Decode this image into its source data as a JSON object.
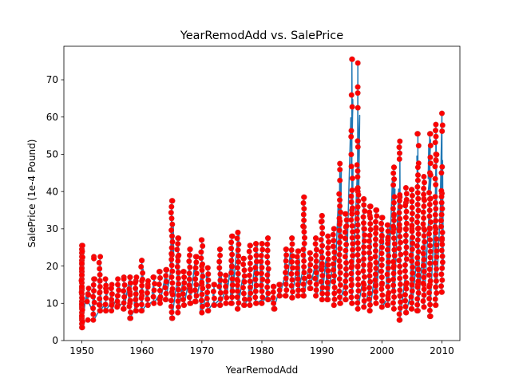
{
  "chart_data": {
    "type": "scatter",
    "title": "YearRemodAdd vs. SalePrice",
    "xlabel": "YearRemodAdd",
    "ylabel": "SalePrice (1e-4 Pound)",
    "xlim": [
      1947,
      2013
    ],
    "ylim": [
      0,
      79
    ],
    "xticks": [
      1950,
      1960,
      1970,
      1980,
      1990,
      2000,
      2010
    ],
    "yticks": [
      0,
      10,
      20,
      30,
      40,
      50,
      60,
      70
    ],
    "grid": false,
    "legend": "none",
    "colors": {
      "line": "#1f77b4",
      "marker": "#ff0000",
      "marker_edge": "#d62728"
    },
    "ranges": [
      [
        1950,
        3.5,
        25.5
      ],
      [
        1951,
        10.5,
        14
      ],
      [
        1952,
        5.5,
        16.5
      ],
      [
        1953,
        8,
        22.5
      ],
      [
        1954,
        8,
        16.5
      ],
      [
        1955,
        8,
        14
      ],
      [
        1956,
        9,
        15
      ],
      [
        1957,
        8.5,
        16.5
      ],
      [
        1958,
        6,
        17
      ],
      [
        1959,
        8,
        17
      ],
      [
        1960,
        8,
        21.5
      ],
      [
        1961,
        9.5,
        16
      ],
      [
        1962,
        10,
        17
      ],
      [
        1963,
        10,
        18.5
      ],
      [
        1964,
        11,
        19
      ],
      [
        1965,
        6,
        37.5
      ],
      [
        1966,
        7.5,
        27.5
      ],
      [
        1967,
        9.5,
        18.5
      ],
      [
        1968,
        10,
        24.5
      ],
      [
        1969,
        10.5,
        22.5
      ],
      [
        1970,
        7.5,
        27
      ],
      [
        1971,
        8,
        19.5
      ],
      [
        1972,
        9.5,
        15
      ],
      [
        1973,
        9.5,
        24.5
      ],
      [
        1974,
        10,
        17.5
      ],
      [
        1975,
        10,
        28
      ],
      [
        1976,
        8.5,
        29
      ],
      [
        1977,
        9.5,
        22
      ],
      [
        1978,
        9.5,
        25.5
      ],
      [
        1979,
        10,
        26
      ],
      [
        1980,
        10,
        26
      ],
      [
        1981,
        11,
        27.5
      ],
      [
        1982,
        8.5,
        14.5
      ],
      [
        1983,
        12,
        15
      ],
      [
        1984,
        12,
        24.5
      ],
      [
        1985,
        11.5,
        27.5
      ],
      [
        1986,
        12,
        24
      ],
      [
        1987,
        12,
        38.5
      ],
      [
        1988,
        14,
        23.5
      ],
      [
        1989,
        12,
        27.5
      ],
      [
        1990,
        11,
        33.5
      ],
      [
        1991,
        11,
        28
      ],
      [
        1992,
        9.5,
        30
      ],
      [
        1993,
        10,
        47.5
      ],
      [
        1994,
        11,
        34
      ],
      [
        1995,
        10,
        75.5
      ],
      [
        1996,
        8.5,
        74.5
      ],
      [
        1997,
        9,
        38
      ],
      [
        1998,
        8,
        36
      ],
      [
        1999,
        10,
        35
      ],
      [
        2000,
        9,
        33
      ],
      [
        2001,
        9.5,
        31
      ],
      [
        2002,
        8.5,
        46.5
      ],
      [
        2003,
        5.5,
        53.5
      ],
      [
        2004,
        7.5,
        41
      ],
      [
        2005,
        8.5,
        40.5
      ],
      [
        2006,
        8,
        55.5
      ],
      [
        2007,
        9,
        44
      ],
      [
        2008,
        6.5,
        55.5
      ],
      [
        2009,
        9.5,
        58
      ],
      [
        2010,
        13,
        61
      ]
    ],
    "x": [
      1950,
      1950,
      1950,
      1950,
      1950,
      1950,
      1950,
      1950,
      1950,
      1950,
      1950,
      1950,
      1950,
      1950,
      1950,
      1950,
      1950,
      1950,
      1950,
      1950,
      1950,
      1950,
      1950,
      1950,
      1950,
      1950,
      1950,
      1951,
      1951,
      1952,
      1952,
      1952,
      1953,
      1953,
      1953,
      1953,
      1954,
      1954,
      1954,
      1955,
      1955,
      1956,
      1956,
      1956,
      1957,
      1957,
      1958,
      1958,
      1958,
      1958,
      1959,
      1959,
      1960,
      1960,
      1960,
      1960,
      1961,
      1961,
      1962,
      1962,
      1963,
      1963,
      1964,
      1964,
      1965,
      1965,
      1965,
      1965,
      1966,
      1966,
      1966,
      1967,
      1967,
      1968,
      1968,
      1968,
      1969,
      1969,
      1970,
      1970,
      1970,
      1970,
      1971,
      1971,
      1972,
      1972,
      1973,
      1973,
      1974,
      1974,
      1975,
      1975,
      1975,
      1976,
      1976,
      1976,
      1977,
      1977,
      1978,
      1978,
      1979,
      1979,
      1980,
      1980,
      1981,
      1981,
      1982,
      1982,
      1983,
      1983,
      1984,
      1984,
      1985,
      1985,
      1986,
      1986,
      1987,
      1987,
      1987,
      1988,
      1988,
      1989,
      1989,
      1990,
      1990,
      1990,
      1990,
      1991,
      1991,
      1992,
      1992,
      1993,
      1993,
      1993,
      1993,
      1993,
      1994,
      1994,
      1994,
      1995,
      1995,
      1995,
      1995,
      1995,
      1996,
      1996,
      1996,
      1996,
      1996,
      1996,
      1997,
      1997,
      1997,
      1997,
      1998,
      1998,
      1998,
      1998,
      1999,
      1999,
      1999,
      1999,
      2000,
      2000,
      2000,
      2000,
      2001,
      2001,
      2001,
      2001,
      2002,
      2002,
      2002,
      2002,
      2002,
      2003,
      2003,
      2003,
      2003,
      2003,
      2004,
      2004,
      2004,
      2004,
      2004,
      2005,
      2005,
      2005,
      2005,
      2006,
      2006,
      2006,
      2006,
      2006,
      2006,
      2007,
      2007,
      2007,
      2007,
      2007,
      2008,
      2008,
      2008,
      2008,
      2008,
      2008,
      2009,
      2009,
      2009,
      2009,
      2009,
      2010,
      2010,
      2010,
      2010
    ],
    "y": [
      3.5,
      4.5,
      5.5,
      6.5,
      7.5,
      8.5,
      9.5,
      10.5,
      11.5,
      12.5,
      13.5,
      14.5,
      15.5,
      16.5,
      17.5,
      18.5,
      19.5,
      20.5,
      21.5,
      22.5,
      23.5,
      24.5,
      25.5,
      6,
      9,
      14,
      10.5,
      12.5,
      5.5,
      16.5,
      22.5,
      22,
      8,
      13,
      16,
      9.5,
      8,
      14,
      8,
      10,
      15,
      9.5,
      12,
      16.5,
      8.5,
      17,
      6,
      10,
      13,
      17,
      8,
      16,
      8,
      21.5,
      12,
      16,
      9.5,
      15,
      10,
      17,
      11,
      18.5,
      11,
      19,
      37.5,
      6,
      23,
      13,
      7.5,
      27.5,
      22.5,
      9.5,
      18.5,
      10,
      24.5,
      14,
      10.5,
      22.5,
      7.5,
      27,
      15,
      20,
      8,
      19.5,
      9.5,
      15,
      24.5,
      9.5,
      17.5,
      10,
      28,
      10,
      20,
      29,
      8.5,
      16,
      9.5,
      22,
      9.5,
      25.5,
      26,
      10,
      26,
      10,
      11,
      27.5,
      8.5,
      14.5,
      12,
      15,
      24.5,
      12,
      27.5,
      11.5,
      12,
      24,
      12,
      38.5,
      30.5,
      14,
      23.5,
      12,
      27.5,
      11,
      33.5,
      32,
      20,
      28,
      11,
      9.5,
      30,
      47.5,
      43,
      10,
      32,
      20,
      11,
      34,
      30.5,
      10,
      75.5,
      35,
      20,
      15,
      8.5,
      74.5,
      62.5,
      41,
      40,
      20,
      9,
      38,
      30,
      15,
      8,
      36,
      33.5,
      20,
      10,
      35,
      30,
      15,
      9,
      33,
      28,
      15,
      9.5,
      31,
      27,
      12,
      8.5,
      46.5,
      33.5,
      30,
      20,
      5.5,
      53.5,
      38.5,
      30,
      12,
      7.5,
      41,
      37,
      30,
      15,
      8.5,
      40.5,
      30,
      15,
      8,
      55.5,
      46.5,
      43,
      30,
      15,
      9,
      44,
      38,
      30,
      15,
      6.5,
      55.5,
      45,
      38,
      30,
      15,
      9.5,
      58,
      50,
      48.5,
      30,
      61,
      39.5,
      27,
      13
    ],
    "series_order": [
      1950,
      1951,
      1952,
      1953,
      1954,
      1955,
      1956,
      1957,
      1958,
      1959,
      1960,
      1961,
      1962,
      1963,
      1964,
      1965,
      1966,
      1967,
      1968,
      1969,
      1970,
      1971,
      1972,
      1973,
      1974,
      1975,
      1976,
      1977,
      1978,
      1979,
      1980,
      1981,
      1982,
      1983,
      1984,
      1985,
      1986,
      1987,
      1988,
      1989,
      1990,
      1991,
      1992,
      1993,
      1994,
      1995,
      1996,
      1997,
      1998,
      1999,
      2000,
      2001,
      2002,
      2003,
      2004,
      2005,
      2006,
      2007,
      2008,
      2009,
      2010
    ]
  }
}
